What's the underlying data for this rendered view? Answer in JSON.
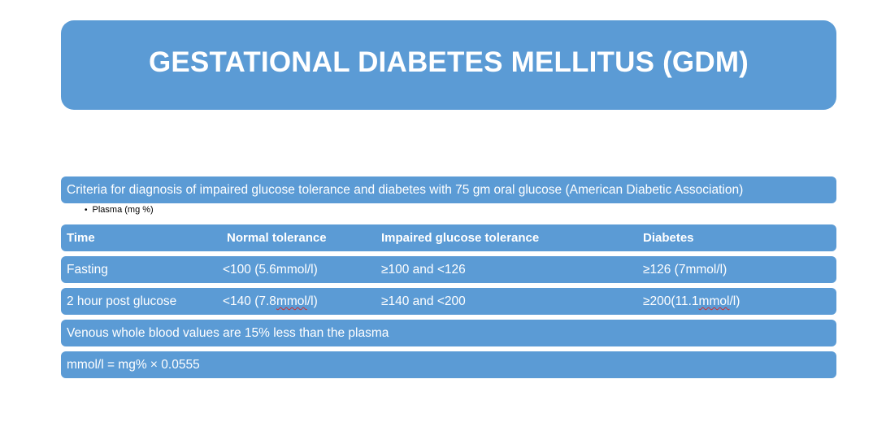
{
  "title": "GESTATIONAL DIABETES MELLITUS (GDM)",
  "criteria": "Criteria for diagnosis of impaired glucose tolerance and diabetes with 75 gm oral glucose (American Diabetic Association)",
  "bullet": {
    "symbol": "•",
    "text": "Plasma (mg %)"
  },
  "table": {
    "headers": [
      "Time",
      "Normal tolerance",
      "Impaired glucose tolerance",
      "Diabetes"
    ],
    "rows": [
      {
        "time": "Fasting",
        "normal": "<100 (5.6mmol/l)",
        "impaired": "≥100 and <126",
        "diabetes": "≥126 (7mmol/l)"
      },
      {
        "time": "2 hour post glucose",
        "normal_pre": "<140 (7.8",
        "normal_unit": "mmol",
        "normal_post": "/l)",
        "impaired": "≥140 and <200",
        "diabetes_pre": "≥200(11.1",
        "diabetes_unit": "mmol",
        "diabetes_post": "/l)"
      }
    ]
  },
  "notes": [
    "Venous whole blood values are 15% less than the plasma",
    "mmol/l = mg% × 0.0555"
  ],
  "colors": {
    "box_fill": "#5b9bd5",
    "text_on_box": "#ffffff",
    "spellcheck": "#d03030"
  }
}
